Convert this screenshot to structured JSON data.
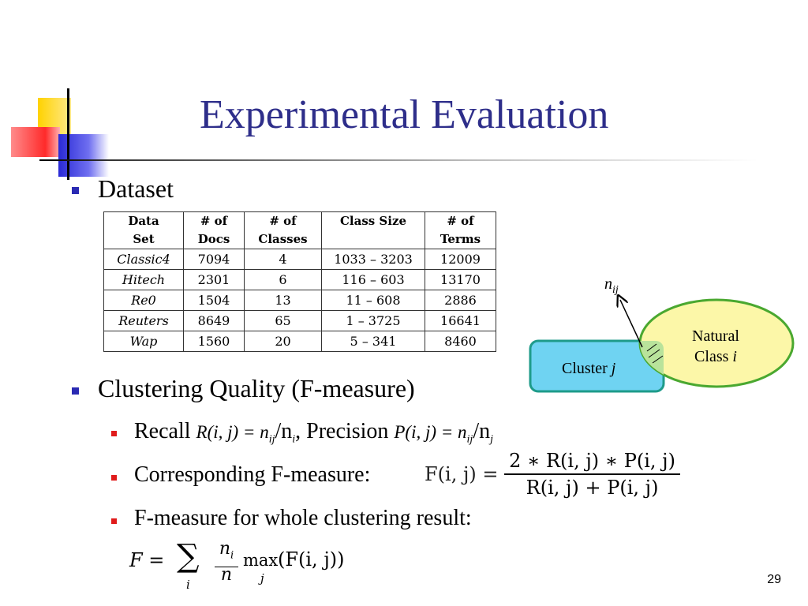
{
  "title": "Experimental Evaluation",
  "bullets": {
    "dataset": "Dataset",
    "quality": "Clustering Quality (F-measure)",
    "recall": "Recall",
    "precision_sep": ", Precision",
    "corresponding": "Corresponding F-measure:",
    "whole": "F-measure for whole clustering result:"
  },
  "table": {
    "headers": [
      [
        "Data",
        "Set"
      ],
      [
        "# of",
        "Docs"
      ],
      [
        "# of",
        "Classes"
      ],
      [
        "Class Size",
        ""
      ],
      [
        "# of",
        "Terms"
      ]
    ],
    "rows": [
      [
        "Classic4",
        "7094",
        "4",
        "1033 – 3203",
        "12009"
      ],
      [
        "Hitech",
        "2301",
        "6",
        "116 – 603",
        "13170"
      ],
      [
        "Re0",
        "1504",
        "13",
        "11 – 608",
        "2886"
      ],
      [
        "Reuters",
        "8649",
        "65",
        "1 – 3725",
        "16641"
      ],
      [
        "Wap",
        "1560",
        "20",
        "5 – 341",
        "8460"
      ]
    ]
  },
  "diagram": {
    "nij": "n",
    "nij_sub": "ij",
    "cluster": "Cluster",
    "cluster_var": "j",
    "natural_line1": "Natural",
    "natural_line2": "Class",
    "natural_var": "i"
  },
  "formulas": {
    "recall": "R(i, j) = n",
    "recall_sub1": "ij",
    "recall_mid": "/n",
    "recall_sub2": "i",
    "precision": "P(i, j) = n",
    "precision_sub1": "ij",
    "precision_mid": "/n",
    "precision_sub2": "j",
    "f_lhs": "F(i, j) =",
    "f_num": "2 ∗ R(i, j) ∗ P(i, j)",
    "f_den": "R(i, j) + P(i, j)",
    "total_lhs": "F =",
    "total_sum": "∑",
    "total_sum_sub": "i",
    "total_frac_num": "n",
    "total_frac_num_sub": "i",
    "total_frac_den": "n",
    "total_max": "max",
    "total_max_sub": "j",
    "total_arg": "(F(i, j))"
  },
  "page_number": "29",
  "colors": {
    "title": "#2e2e8a",
    "bullet_level1": "#2a2ab3",
    "bullet_level2": "#e01b1b",
    "cluster_fill": "#6fd3f2",
    "cluster_stroke": "#1e9b8a",
    "natural_fill": "#fcf7a8",
    "natural_stroke": "#4aa830"
  }
}
